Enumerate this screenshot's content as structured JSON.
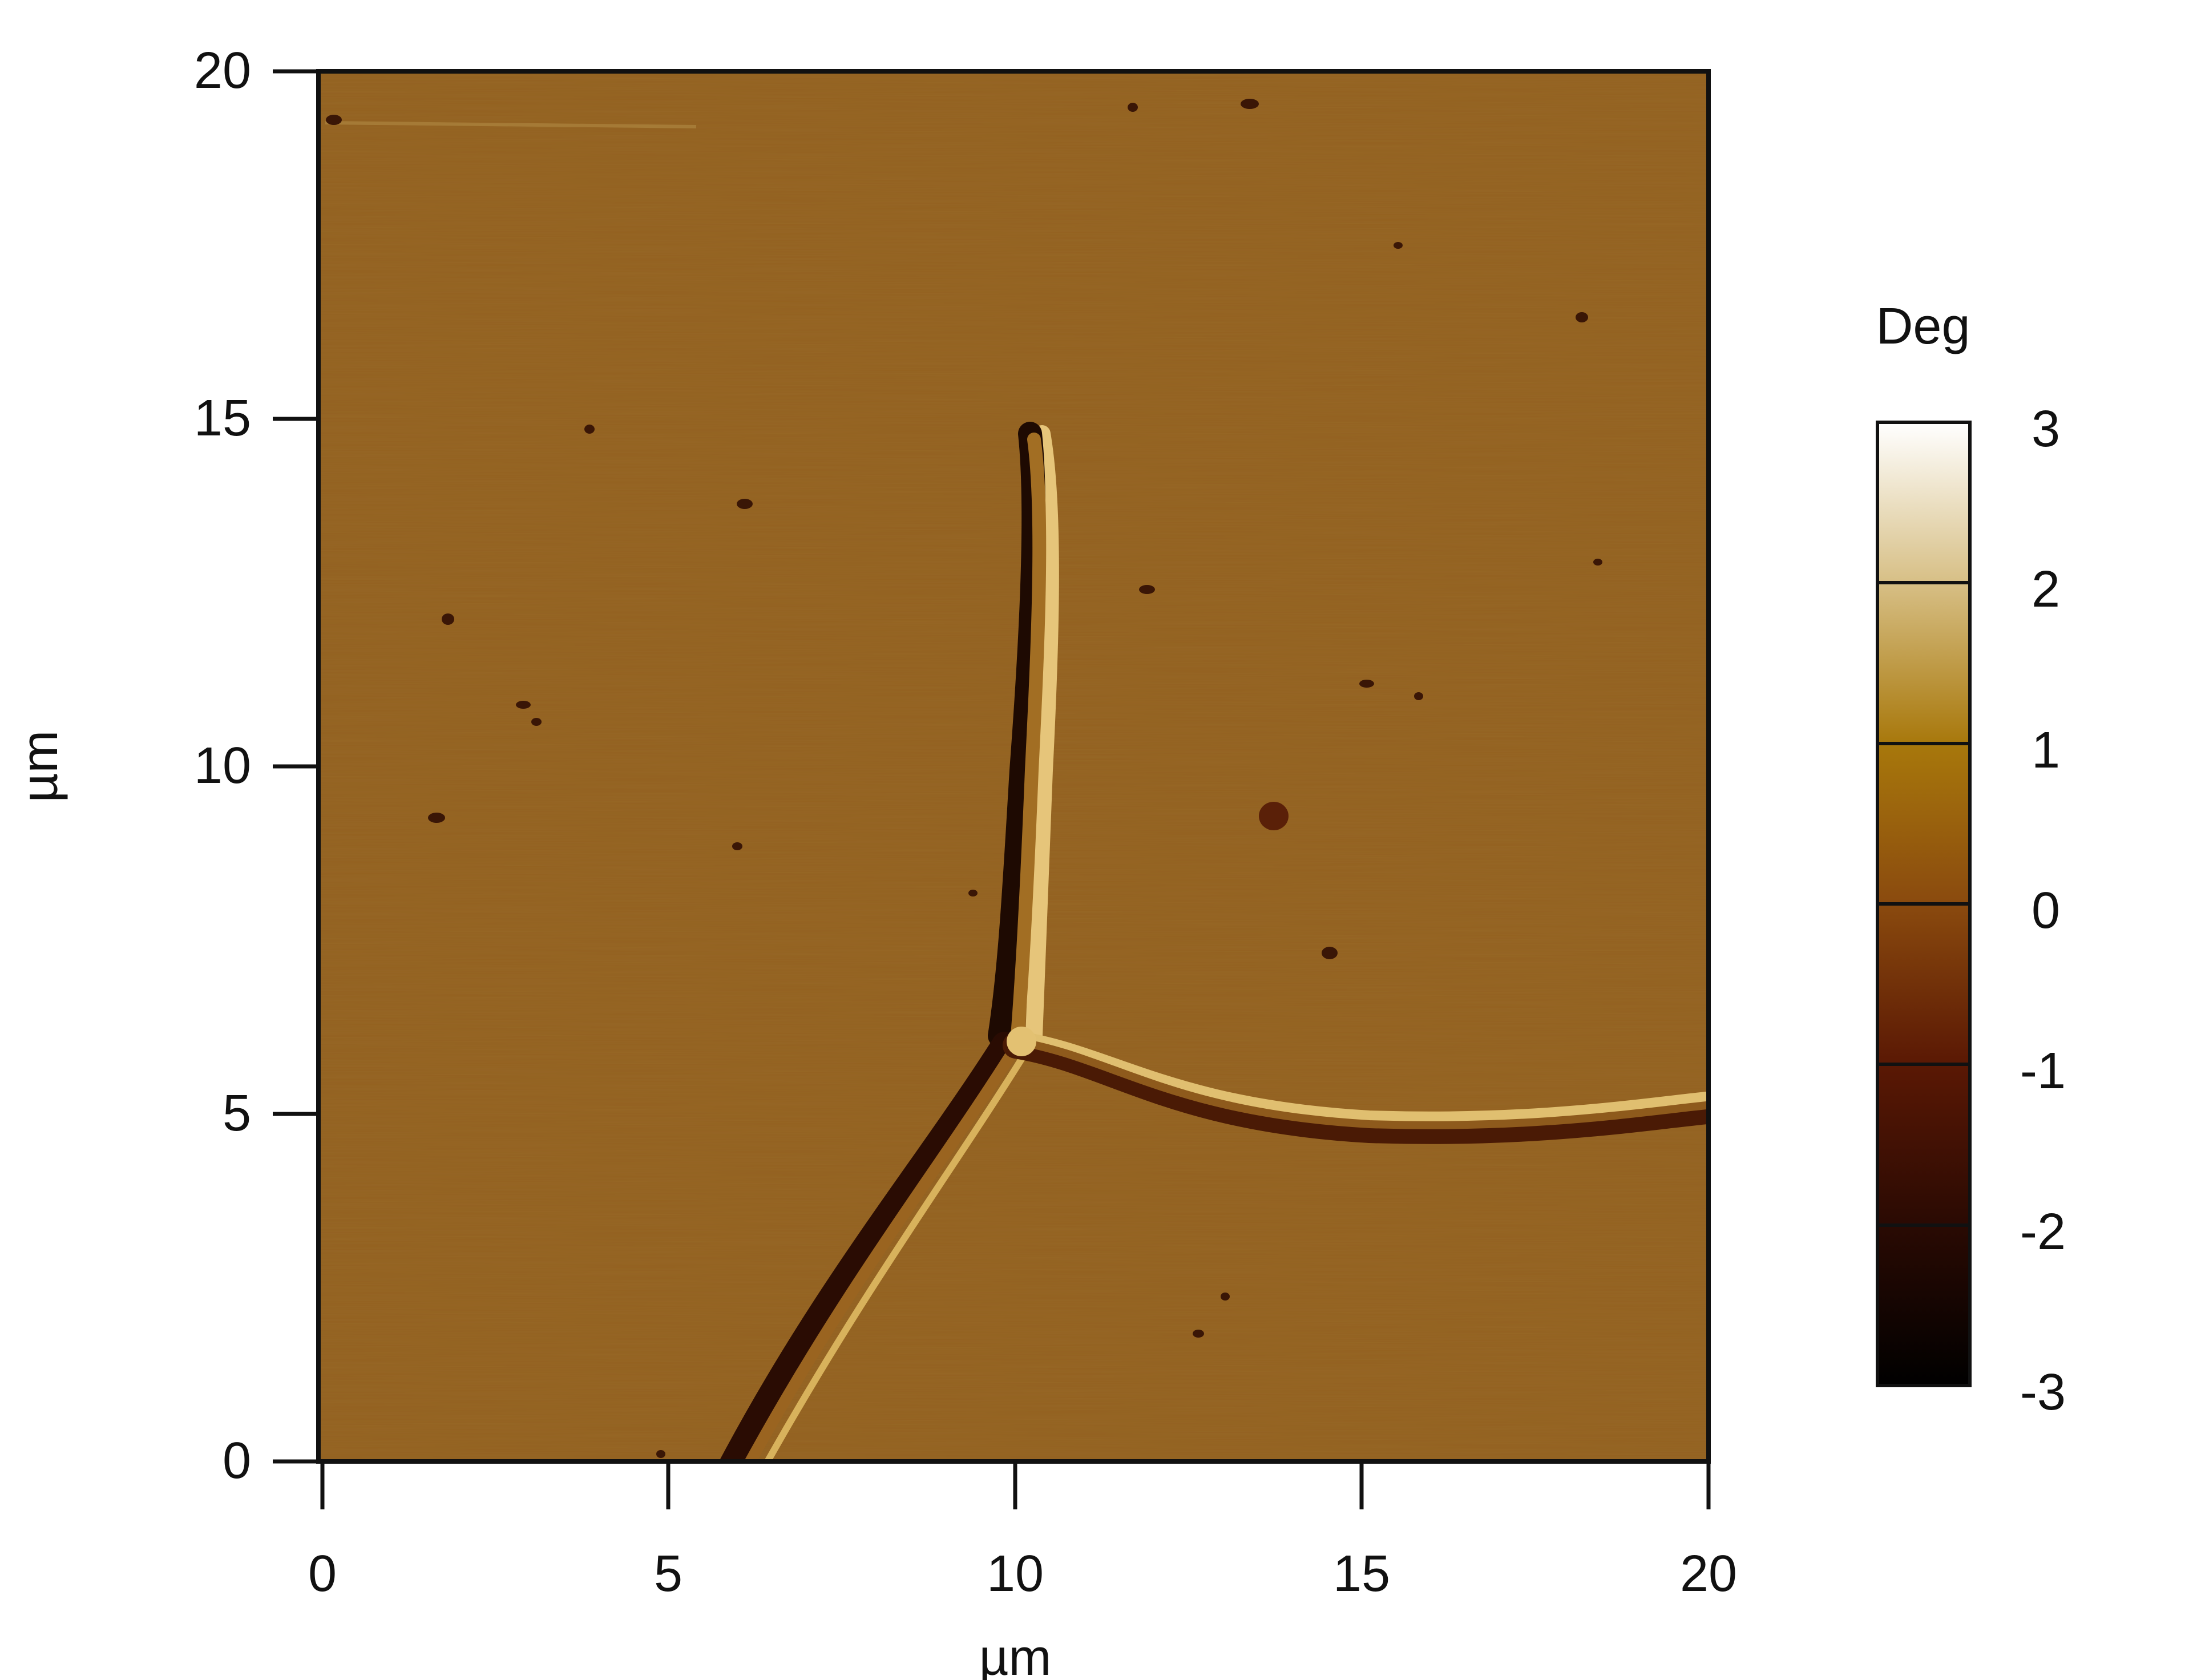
{
  "image": {
    "x_axis": {
      "label": "µm",
      "ticks": [
        "0",
        "5",
        "10",
        "15",
        "20"
      ],
      "range": [
        0,
        20
      ]
    },
    "y_axis": {
      "label": "µm",
      "ticks": [
        "0",
        "5",
        "10",
        "15",
        "20"
      ],
      "range": [
        0,
        20
      ]
    },
    "colorbar": {
      "title": "Deg",
      "ticks": [
        "3",
        "2",
        "1",
        "0",
        "-1",
        "-2",
        "-3"
      ],
      "range": [
        -3,
        3
      ],
      "colors": [
        "#000000",
        "#2a0a03",
        "#5a1804",
        "#8a4a0e",
        "#a8780c",
        "#d7bf85",
        "#ffffff"
      ]
    },
    "colors": {
      "background_phase": "#93601f",
      "dark_edge": "#1e0a02",
      "bright_edge": "#e6c57a",
      "frame": "#111111"
    }
  }
}
